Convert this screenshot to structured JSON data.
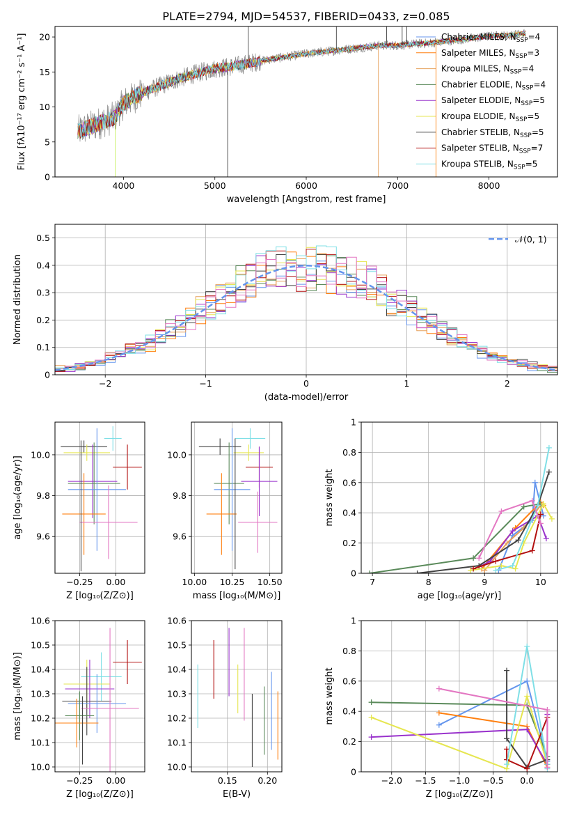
{
  "title": "PLATE=2794, MJD=54537, FIBERID=0433, z=0.085",
  "colors": {
    "Chabrier MILES": "#6495ed",
    "Salpeter MILES": "#ff7f0e",
    "Kroupa MILES": "#e6a05a",
    "Chabrier ELODIE": "#5a8a5a",
    "Salpeter ELODIE": "#9932cc",
    "Kroupa ELODIE": "#e6e650",
    "Chabrier STELIB": "#444444",
    "Salpeter STELIB": "#b21010",
    "Kroupa STELIB": "#7fdfe6",
    "pink": "#e377c2",
    "lightgreen": "#c8f060",
    "tealgreen": "#2e8b57"
  },
  "chart_data": [
    {
      "type": "line",
      "id": "spectrum",
      "xlabel": "wavelength [Angstrom, rest frame]",
      "ylabel": "Flux [fλ10⁻¹⁷ erg cm⁻² s⁻¹ A⁻¹]",
      "xlim": [
        3250,
        8750
      ],
      "ylim": [
        0,
        21.5
      ],
      "xticks": [
        4000,
        5000,
        6000,
        7000,
        8000
      ],
      "yticks": [
        0,
        5,
        10,
        15,
        20
      ],
      "grid": false,
      "legend_position": "top-right",
      "legend": [
        {
          "label": "Chabrier MILES, N",
          "sub": "SSP",
          "tail": "=4"
        },
        {
          "label": "Salpeter MILES, N",
          "sub": "SSP",
          "tail": "=3"
        },
        {
          "label": "Kroupa MILES, N",
          "sub": "SSP",
          "tail": "=4"
        },
        {
          "label": "Chabrier ELODIE, N",
          "sub": "SSP",
          "tail": "=4"
        },
        {
          "label": "Salpeter ELODIE, N",
          "sub": "SSP",
          "tail": "=5"
        },
        {
          "label": "Kroupa ELODIE, N",
          "sub": "SSP",
          "tail": "=5"
        },
        {
          "label": "Chabrier STELIB, N",
          "sub": "SSP",
          "tail": "=5"
        },
        {
          "label": "Salpeter STELIB, N",
          "sub": "SSP",
          "tail": "=7"
        },
        {
          "label": "Kroupa STELIB, N",
          "sub": "SSP",
          "tail": "=5"
        }
      ],
      "continuum": {
        "x": [
          3500,
          3700,
          3900,
          4000,
          4200,
          4400,
          4600,
          4800,
          5000,
          5200,
          5400,
          5600,
          5800,
          6000,
          6200,
          6400,
          6600,
          6800,
          7000,
          7200,
          7400,
          7600,
          7800,
          8000,
          8200,
          8400
        ],
        "y": [
          6.5,
          7.5,
          8.5,
          10.5,
          12.0,
          13.0,
          14.0,
          14.8,
          15.5,
          15.8,
          16.3,
          16.8,
          17.2,
          17.6,
          17.9,
          18.2,
          18.5,
          18.8,
          18.8,
          19.0,
          19.2,
          19.5,
          19.8,
          20.1,
          20.2,
          20.5
        ]
      },
      "spikes": [
        {
          "x": 3910,
          "y": 0,
          "color": "lightgreen"
        },
        {
          "x": 5140,
          "y": 0,
          "color": "Chabrier STELIB"
        },
        {
          "x": 6790,
          "y": 0,
          "color": "Kroupa MILES"
        },
        {
          "x": 7420,
          "y": 0,
          "color": "Salpeter MILES"
        },
        {
          "x": 5365,
          "y": 21.5,
          "color": "Chabrier STELIB"
        },
        {
          "x": 6330,
          "y": 21.5,
          "color": "Chabrier STELIB"
        },
        {
          "x": 6880,
          "y": 21.5,
          "color": "Chabrier STELIB"
        },
        {
          "x": 7050,
          "y": 21.5,
          "color": "Chabrier STELIB"
        },
        {
          "x": 7100,
          "y": 21.5,
          "color": "Chabrier STELIB"
        }
      ]
    },
    {
      "type": "step-histogram",
      "id": "residuals",
      "xlabel": "(data-model)/error",
      "ylabel": "Normed distribution",
      "xlim": [
        -2.5,
        2.5
      ],
      "ylim": [
        0,
        0.55
      ],
      "xticks": [
        -2,
        -1,
        0,
        1,
        2
      ],
      "xticklabels": [
        "−2",
        "−1",
        "0",
        "1",
        "2"
      ],
      "yticks": [
        0.0,
        0.1,
        0.2,
        0.3,
        0.4,
        0.5
      ],
      "grid": true,
      "legend": [
        {
          "label": "𝒩(0, 1)",
          "style": "dashed",
          "color": "#6495ed"
        }
      ],
      "legend_position": "top-right",
      "bin_width": 0.1,
      "bin_start": -2.5,
      "reference_curve": "gaussian(0,1)"
    },
    {
      "type": "errorbar",
      "id": "age_vs_Z",
      "xlabel": "Z [log₁₀(Z/Z⊙)]",
      "ylabel": "age  [log₁₀(age/yr)]",
      "xlim": [
        -0.42,
        0.2
      ],
      "ylim": [
        9.42,
        10.16
      ],
      "xticks": [
        -0.25,
        0.0
      ],
      "xticklabels": [
        "−0.25",
        "0.00"
      ],
      "yticks": [
        9.6,
        9.8,
        10.0
      ],
      "yticklabels": [
        "9.6",
        "9.8",
        "10.0"
      ],
      "grid": true,
      "points": [
        {
          "x": -0.02,
          "y": 10.08,
          "xerr": 0.06,
          "yerr": 0.06,
          "color": "Kroupa STELIB"
        },
        {
          "x": -0.22,
          "y": 10.04,
          "xerr": 0.16,
          "yerr": 0.03,
          "color": "Chabrier STELIB"
        },
        {
          "x": -0.2,
          "y": 10.01,
          "xerr": 0.16,
          "yerr": 0.04,
          "color": "Kroupa ELODIE"
        },
        {
          "x": 0.08,
          "y": 9.94,
          "xerr": 0.1,
          "yerr": 0.11,
          "color": "Salpeter STELIB"
        },
        {
          "x": -0.16,
          "y": 9.87,
          "xerr": 0.17,
          "yerr": 0.18,
          "color": "Salpeter ELODIE"
        },
        {
          "x": -0.15,
          "y": 9.86,
          "xerr": 0.18,
          "yerr": 0.2,
          "color": "Chabrier ELODIE"
        },
        {
          "x": -0.13,
          "y": 9.83,
          "xerr": 0.2,
          "yerr": 0.3,
          "color": "Chabrier MILES"
        },
        {
          "x": -0.22,
          "y": 9.71,
          "xerr": 0.15,
          "yerr": 0.2,
          "color": "Salpeter MILES"
        },
        {
          "x": -0.05,
          "y": 9.67,
          "xerr": 0.2,
          "yerr": 0.18,
          "color": "pink"
        },
        {
          "x": -0.24,
          "y": 9.75,
          "xerr": 0.0,
          "yerr": 0.32,
          "color": "Chabrier STELIB"
        }
      ]
    },
    {
      "type": "errorbar",
      "id": "age_vs_mass",
      "xlabel": "mass [log₁₀(M/M⊙)]",
      "xlim": [
        9.98,
        10.58
      ],
      "ylim": [
        9.42,
        10.16
      ],
      "xticks": [
        10.0,
        10.25,
        10.5
      ],
      "xticklabels": [
        "10.00",
        "10.25",
        "10.50"
      ],
      "yticks": [
        9.6,
        9.8,
        10.0
      ],
      "yticklabels": [
        "9.6",
        "9.8",
        "10.0"
      ],
      "grid": true,
      "points": [
        {
          "x": 10.37,
          "y": 10.08,
          "xerr": 0.1,
          "yerr": 0.05,
          "color": "Kroupa STELIB"
        },
        {
          "x": 10.17,
          "y": 10.04,
          "xerr": 0.14,
          "yerr": 0.04,
          "color": "Chabrier STELIB"
        },
        {
          "x": 10.36,
          "y": 10.01,
          "xerr": 0.1,
          "yerr": 0.04,
          "color": "Kroupa ELODIE"
        },
        {
          "x": 10.43,
          "y": 9.94,
          "xerr": 0.09,
          "yerr": 0.1,
          "color": "Salpeter STELIB"
        },
        {
          "x": 10.43,
          "y": 9.87,
          "xerr": 0.12,
          "yerr": 0.17,
          "color": "Salpeter ELODIE"
        },
        {
          "x": 10.23,
          "y": 9.86,
          "xerr": 0.1,
          "yerr": 0.2,
          "color": "Chabrier ELODIE"
        },
        {
          "x": 10.25,
          "y": 9.83,
          "xerr": 0.12,
          "yerr": 0.3,
          "color": "Chabrier MILES"
        },
        {
          "x": 10.18,
          "y": 9.71,
          "xerr": 0.1,
          "yerr": 0.2,
          "color": "Salpeter MILES"
        },
        {
          "x": 10.42,
          "y": 9.67,
          "xerr": 0.13,
          "yerr": 0.15,
          "color": "pink"
        },
        {
          "x": 10.27,
          "y": 9.76,
          "xerr": 0.0,
          "yerr": 0.32,
          "color": "Chabrier STELIB"
        }
      ]
    },
    {
      "type": "line",
      "id": "massweight_vs_age",
      "xlabel": "age  [log₁₀(age/yr)]",
      "ylabel": "mass weight",
      "xlim": [
        6.8,
        10.3
      ],
      "ylim": [
        0.0,
        1.0
      ],
      "xticks": [
        7,
        8,
        9,
        10
      ],
      "yticks": [
        0.0,
        0.2,
        0.4,
        0.6,
        0.8,
        1.0
      ],
      "grid": true,
      "series": [
        {
          "color": "Chabrier MILES",
          "x": [
            9.25,
            9.5,
            9.85,
            9.9,
            10.05
          ],
          "y": [
            0.02,
            0.25,
            0.35,
            0.6,
            0.38
          ]
        },
        {
          "color": "Salpeter MILES",
          "x": [
            8.95,
            9.55,
            10.0,
            10.05
          ],
          "y": [
            0.03,
            0.3,
            0.47,
            0.45
          ]
        },
        {
          "color": "Kroupa MILES",
          "x": [
            9.0,
            9.4,
            9.7,
            10.0
          ],
          "y": [
            0.02,
            0.2,
            0.3,
            0.45
          ]
        },
        {
          "color": "Chabrier ELODIE",
          "x": [
            6.95,
            8.8,
            9.7,
            10.0
          ],
          "y": [
            0.0,
            0.1,
            0.44,
            0.46
          ]
        },
        {
          "color": "Salpeter ELODIE",
          "x": [
            8.95,
            9.1,
            9.5,
            9.95,
            10.1
          ],
          "y": [
            0.05,
            0.08,
            0.28,
            0.38,
            0.23
          ]
        },
        {
          "color": "Kroupa ELODIE",
          "x": [
            8.75,
            9.3,
            9.55,
            9.7,
            10.05,
            10.2
          ],
          "y": [
            0.02,
            0.05,
            0.03,
            0.2,
            0.46,
            0.36
          ]
        },
        {
          "color": "Chabrier STELIB",
          "x": [
            7.8,
            8.9,
            9.6,
            9.95,
            10.15
          ],
          "y": [
            0.0,
            0.05,
            0.22,
            0.45,
            0.67
          ]
        },
        {
          "color": "Salpeter STELIB",
          "x": [
            8.8,
            9.2,
            9.85,
            10.0
          ],
          "y": [
            0.03,
            0.08,
            0.15,
            0.39
          ]
        },
        {
          "color": "Kroupa STELIB",
          "x": [
            9.2,
            9.5,
            9.95,
            10.15
          ],
          "y": [
            0.02,
            0.05,
            0.45,
            0.83
          ]
        },
        {
          "color": "pink",
          "x": [
            8.9,
            9.3,
            9.85,
            10.0
          ],
          "y": [
            0.1,
            0.41,
            0.48,
            0.33
          ]
        }
      ]
    },
    {
      "type": "errorbar",
      "id": "mass_vs_Z",
      "xlabel": "Z [log₁₀(Z/Z⊙)]",
      "ylabel": "mass [log₁₀(M/M⊙)]",
      "xlim": [
        -0.42,
        0.2
      ],
      "ylim": [
        9.98,
        10.6
      ],
      "xticks": [
        -0.25,
        0.0
      ],
      "xticklabels": [
        "−0.25",
        "0.00"
      ],
      "yticks": [
        10.0,
        10.1,
        10.2,
        10.3,
        10.4,
        10.5,
        10.6
      ],
      "yticklabels": [
        "10.0",
        "10.1",
        "10.2",
        "10.3",
        "10.4",
        "10.5",
        "10.6"
      ],
      "grid": true,
      "points": [
        {
          "x": 0.08,
          "y": 10.43,
          "xerr": 0.1,
          "yerr": 0.09,
          "color": "Salpeter STELIB"
        },
        {
          "x": -0.1,
          "y": 10.37,
          "xerr": 0.14,
          "yerr": 0.1,
          "color": "Kroupa STELIB"
        },
        {
          "x": -0.2,
          "y": 10.34,
          "xerr": 0.16,
          "yerr": 0.1,
          "color": "Kroupa ELODIE"
        },
        {
          "x": -0.18,
          "y": 10.32,
          "xerr": 0.17,
          "yerr": 0.12,
          "color": "Salpeter ELODIE"
        },
        {
          "x": -0.2,
          "y": 10.27,
          "xerr": 0.17,
          "yerr": 0.14,
          "color": "Chabrier STELIB"
        },
        {
          "x": -0.13,
          "y": 10.26,
          "xerr": 0.2,
          "yerr": 0.12,
          "color": "Chabrier MILES"
        },
        {
          "x": -0.04,
          "y": 10.24,
          "xerr": 0.2,
          "yerr": 0.33,
          "color": "pink"
        },
        {
          "x": -0.25,
          "y": 10.21,
          "xerr": 0.1,
          "yerr": 0.1,
          "color": "Chabrier ELODIE"
        },
        {
          "x": -0.27,
          "y": 10.18,
          "xerr": 0.15,
          "yerr": 0.1,
          "color": "Salpeter MILES"
        },
        {
          "x": -0.23,
          "y": 10.15,
          "xerr": 0.0,
          "yerr": 0.14,
          "color": "Chabrier STELIB"
        }
      ]
    },
    {
      "type": "errorbar",
      "id": "mass_vs_ebv",
      "xlabel": "E(B-V)",
      "xlim": [
        0.105,
        0.218
      ],
      "ylim": [
        9.98,
        10.6
      ],
      "xticks": [
        0.15,
        0.2
      ],
      "xticklabels": [
        "0.15",
        "0.20"
      ],
      "yticks": [
        10.0,
        10.1,
        10.2,
        10.3,
        10.4,
        10.5,
        10.6
      ],
      "yticklabels": [
        "10.0",
        "10.1",
        "10.2",
        "10.3",
        "10.4",
        "10.5",
        "10.6"
      ],
      "grid": true,
      "points": [
        {
          "x": 0.113,
          "y": 10.29,
          "xerr": 0.0,
          "yerr": 0.13,
          "color": "Kroupa STELIB"
        },
        {
          "x": 0.133,
          "y": 10.4,
          "xerr": 0.0,
          "yerr": 0.12,
          "color": "Salpeter STELIB"
        },
        {
          "x": 0.152,
          "y": 10.43,
          "xerr": 0.0,
          "yerr": 0.14,
          "color": "Salpeter ELODIE"
        },
        {
          "x": 0.163,
          "y": 10.32,
          "xerr": 0.0,
          "yerr": 0.1,
          "color": "Kroupa ELODIE"
        },
        {
          "x": 0.171,
          "y": 10.38,
          "xerr": 0.0,
          "yerr": 0.19,
          "color": "pink"
        },
        {
          "x": 0.181,
          "y": 10.15,
          "xerr": 0.0,
          "yerr": 0.15,
          "color": "Chabrier STELIB"
        },
        {
          "x": 0.196,
          "y": 10.19,
          "xerr": 0.0,
          "yerr": 0.14,
          "color": "Chabrier ELODIE"
        },
        {
          "x": 0.205,
          "y": 10.23,
          "xerr": 0.0,
          "yerr": 0.16,
          "color": "Chabrier MILES"
        },
        {
          "x": 0.213,
          "y": 10.17,
          "xerr": 0.0,
          "yerr": 0.14,
          "color": "Salpeter MILES"
        }
      ]
    },
    {
      "type": "line",
      "id": "massweight_vs_Z",
      "xlabel": "Z [log₁₀(Z/Z⊙)]",
      "ylabel": "mass weight",
      "xlim": [
        -2.45,
        0.45
      ],
      "ylim": [
        0.0,
        1.0
      ],
      "xticks": [
        -2.0,
        -1.5,
        -1.0,
        -0.5,
        0.0
      ],
      "xticklabels": [
        "−2.0",
        "−1.5",
        "−1.0",
        "−0.5",
        "0.0"
      ],
      "yticks": [
        0.0,
        0.2,
        0.4,
        0.6,
        0.8,
        1.0
      ],
      "grid": true,
      "series": [
        {
          "color": "Chabrier MILES",
          "x": [
            -1.3,
            0.0,
            0.3,
            0.3
          ],
          "y": [
            0.31,
            0.6,
            0.07,
            0.05
          ]
        },
        {
          "color": "Salpeter MILES",
          "x": [
            -1.3,
            0.0,
            0.3
          ],
          "y": [
            0.39,
            0.3,
            0.03
          ]
        },
        {
          "color": "Chabrier ELODIE",
          "x": [
            -2.3,
            0.0,
            0.3,
            0.3
          ],
          "y": [
            0.46,
            0.44,
            0.1,
            0.05
          ]
        },
        {
          "color": "Salpeter ELODIE",
          "x": [
            -2.3,
            0.0,
            0.3,
            0.3
          ],
          "y": [
            0.23,
            0.28,
            0.05,
            0.38
          ]
        },
        {
          "color": "Kroupa ELODIE",
          "x": [
            -2.3,
            -0.3,
            0.0,
            0.3
          ],
          "y": [
            0.36,
            0.02,
            0.5,
            0.05
          ]
        },
        {
          "color": "Chabrier STELIB",
          "x": [
            -0.3,
            -0.3,
            0.0,
            0.3,
            0.3
          ],
          "y": [
            0.67,
            0.22,
            0.03,
            0.08,
            0.05
          ]
        },
        {
          "color": "Salpeter STELIB",
          "x": [
            -0.3,
            -0.3,
            0.0,
            0.3
          ],
          "y": [
            0.15,
            0.08,
            0.02,
            0.36
          ]
        },
        {
          "color": "Kroupa STELIB",
          "x": [
            -0.3,
            0.0,
            0.3,
            0.3
          ],
          "y": [
            0.05,
            0.83,
            0.05,
            0.02
          ]
        },
        {
          "color": "pink",
          "x": [
            -1.3,
            0.3,
            0.3
          ],
          "y": [
            0.55,
            0.41,
            0.03
          ]
        }
      ]
    }
  ]
}
